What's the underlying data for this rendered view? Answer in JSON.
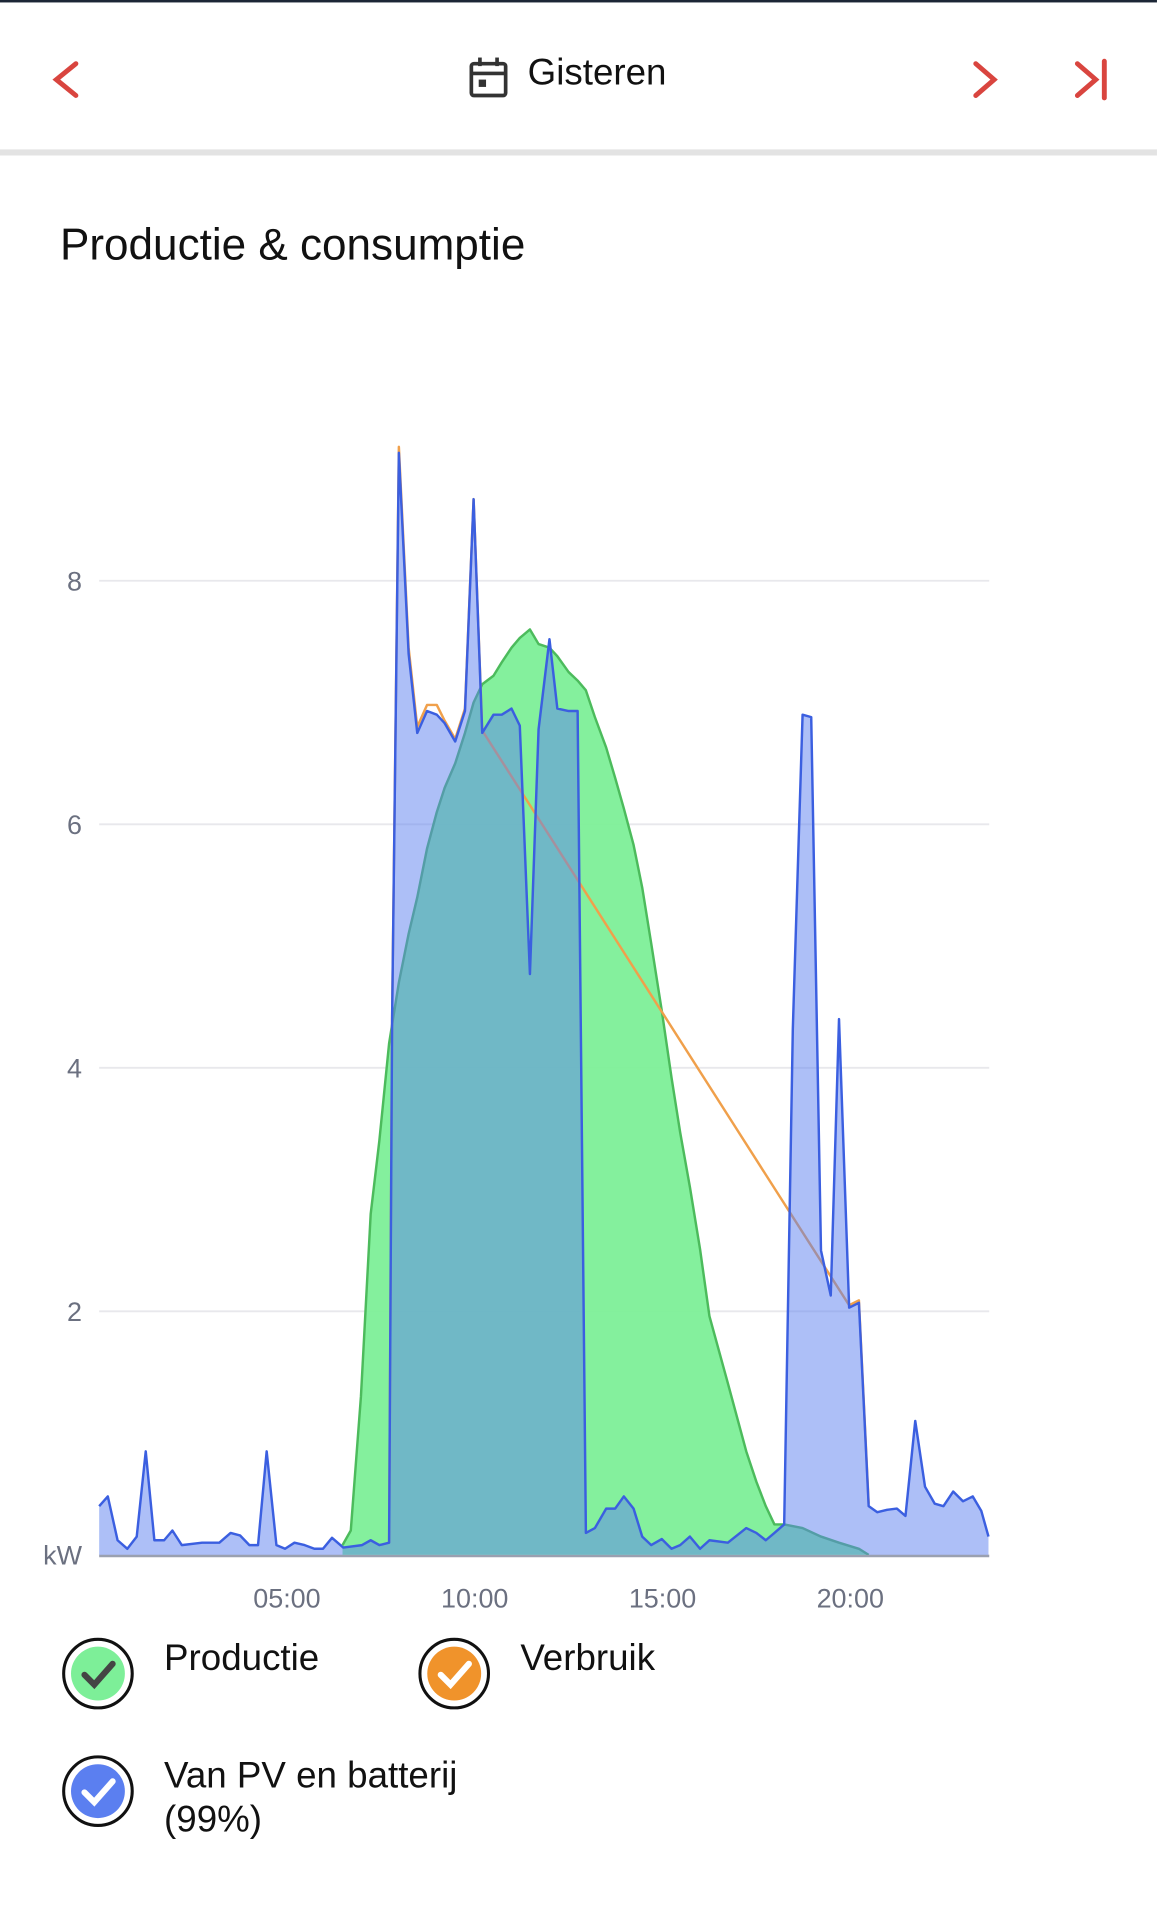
{
  "header": {
    "title": "Gisteren"
  },
  "chart_data": {
    "type": "area",
    "title": "Productie & consumptie",
    "xlim": [
      0,
      23.7
    ],
    "xticks": [
      {
        "value": 5,
        "label": "05:00"
      },
      {
        "value": 10,
        "label": "10:00"
      },
      {
        "value": 15,
        "label": "15:00"
      },
      {
        "value": 20,
        "label": "20:00"
      }
    ],
    "ylim": [
      0,
      9.2
    ],
    "yticks": [
      {
        "value": 0,
        "label": "kW"
      },
      2,
      4,
      6,
      8
    ],
    "grid": true,
    "series": [
      {
        "name": "Productie",
        "color": "#7def98",
        "stroke": "#4cbb5c",
        "fill": true,
        "x": [
          6.48,
          6.7,
          6.97,
          7.23,
          7.46,
          7.72,
          7.98,
          8.24,
          8.47,
          8.73,
          8.99,
          9.2,
          9.48,
          9.74,
          9.97,
          10.2,
          10.5,
          10.72,
          10.98,
          11.2,
          11.47,
          11.7,
          11.99,
          12.2,
          12.5,
          12.74,
          12.96,
          13.2,
          13.5,
          13.74,
          13.97,
          14.23,
          14.46,
          14.7,
          14.98,
          15.24,
          15.47,
          15.73,
          16.0,
          16.25,
          16.74,
          17.23,
          17.5,
          17.75,
          17.98,
          18.24,
          18.73,
          19.22,
          19.7,
          20.23,
          20.49
        ],
        "values": [
          0.08,
          0.2,
          1.3,
          2.8,
          3.4,
          4.2,
          4.7,
          5.1,
          5.4,
          5.8,
          6.1,
          6.3,
          6.5,
          6.75,
          7.0,
          7.15,
          7.22,
          7.33,
          7.45,
          7.53,
          7.6,
          7.48,
          7.45,
          7.38,
          7.25,
          7.18,
          7.1,
          6.88,
          6.63,
          6.38,
          6.13,
          5.83,
          5.48,
          5.02,
          4.47,
          3.92,
          3.47,
          3.02,
          2.51,
          1.96,
          1.41,
          0.85,
          0.6,
          0.4,
          0.25,
          0.25,
          0.22,
          0.15,
          0.1,
          0.05,
          0.0
        ]
      },
      {
        "name": "Verbruik",
        "color": "#f0932b",
        "stroke": "#f0a04b",
        "fill": false,
        "x": [
          7.72,
          7.8,
          7.98,
          8.24,
          8.47,
          8.73,
          8.99,
          9.2,
          9.48,
          9.74,
          9.97,
          10.2,
          19.97,
          20.23,
          20.49
        ],
        "values": [
          0.1,
          4.4,
          9.1,
          7.45,
          6.8,
          6.98,
          6.98,
          6.85,
          6.7,
          6.95,
          8.67,
          6.77,
          2.05,
          2.09,
          0.42
        ]
      },
      {
        "name": "Van PV en batterij (99%)",
        "color": "#5b7ff0",
        "stroke": "#3b5fe0",
        "fill": true,
        "x": [
          0,
          0.23,
          0.49,
          0.75,
          1.0,
          1.24,
          1.47,
          1.73,
          1.95,
          2.2,
          2.74,
          3.2,
          3.5,
          3.75,
          4.0,
          4.23,
          4.46,
          4.72,
          4.95,
          5.2,
          5.47,
          5.73,
          5.96,
          6.2,
          6.5,
          7.0,
          7.23,
          7.46,
          7.72,
          7.8,
          7.98,
          8.24,
          8.47,
          8.73,
          8.99,
          9.2,
          9.48,
          9.74,
          9.97,
          10.2,
          10.5,
          10.72,
          10.98,
          11.2,
          11.47,
          11.7,
          11.99,
          12.2,
          12.5,
          12.74,
          12.96,
          13.2,
          13.5,
          13.74,
          13.97,
          14.23,
          14.46,
          14.7,
          14.98,
          15.24,
          15.47,
          15.73,
          16.0,
          16.25,
          16.74,
          17.23,
          17.5,
          17.75,
          17.98,
          18.24,
          18.47,
          18.73,
          18.96,
          19.22,
          19.48,
          19.7,
          19.97,
          20.23,
          20.49,
          20.72,
          20.98,
          21.24,
          21.47,
          21.73,
          21.99,
          22.25,
          22.48,
          22.74,
          23.0,
          23.26,
          23.49,
          23.68
        ],
        "values": [
          0.4,
          0.48,
          0.12,
          0.05,
          0.15,
          0.85,
          0.12,
          0.12,
          0.2,
          0.08,
          0.1,
          0.1,
          0.18,
          0.16,
          0.08,
          0.08,
          0.85,
          0.08,
          0.05,
          0.1,
          0.08,
          0.05,
          0.05,
          0.14,
          0.06,
          0.08,
          0.12,
          0.08,
          0.1,
          4.4,
          9.05,
          7.4,
          6.75,
          6.93,
          6.9,
          6.83,
          6.68,
          6.93,
          8.67,
          6.75,
          6.9,
          6.9,
          6.95,
          6.81,
          4.77,
          6.78,
          7.52,
          6.95,
          6.93,
          6.93,
          0.18,
          0.22,
          0.38,
          0.38,
          0.48,
          0.38,
          0.15,
          0.08,
          0.13,
          0.05,
          0.08,
          0.15,
          0.05,
          0.12,
          0.1,
          0.22,
          0.18,
          0.12,
          0.18,
          0.25,
          4.32,
          6.9,
          6.88,
          2.5,
          2.13,
          4.4,
          2.03,
          2.07,
          0.4,
          0.35,
          0.37,
          0.38,
          0.32,
          1.1,
          0.56,
          0.42,
          0.4,
          0.52,
          0.44,
          0.48,
          0.36,
          0.15
        ]
      }
    ]
  }
}
